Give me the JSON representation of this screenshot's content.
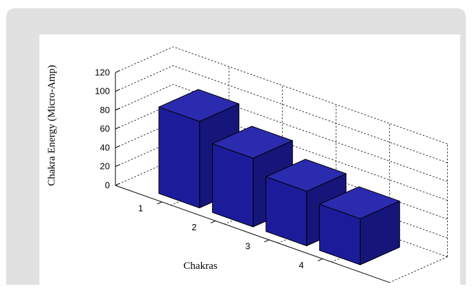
{
  "chart_data": {
    "type": "bar",
    "style": "3d",
    "categories": [
      "1",
      "2",
      "3",
      "4"
    ],
    "values": [
      92,
      73,
      58,
      49
    ],
    "xlabel": "Chakras",
    "ylabel": "Chakra Energy (Micro-Amp)",
    "ylim": [
      0,
      120
    ],
    "yticks": [
      0,
      20,
      40,
      60,
      80,
      100,
      120
    ],
    "grid": true,
    "colors": {
      "bar_front": "#1c1c9b",
      "bar_side": "#15157a",
      "bar_top": "#2b2bb0",
      "edge": "#000000",
      "frame": "#e1e1e1"
    }
  }
}
